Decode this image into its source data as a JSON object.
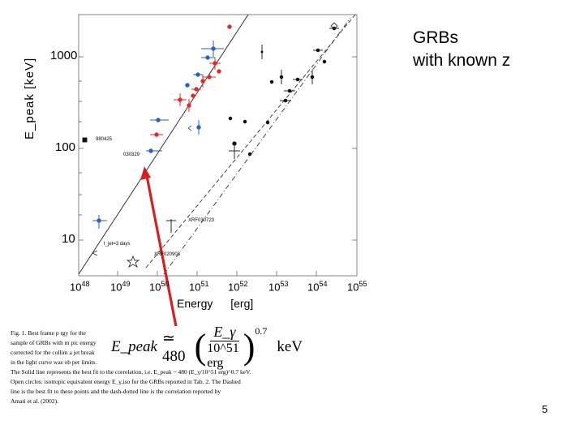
{
  "slide": {
    "title_line1": "GRBs",
    "title_line2": "with known z",
    "page_number": "5"
  },
  "figure": {
    "y_axis_label": "E_peak [keV]",
    "x_axis_label": "Energy [erg]",
    "y_ticks": [
      "1000",
      "100",
      "10"
    ],
    "x_ticks": [
      {
        "base": "10",
        "exp": "48"
      },
      {
        "base": "10",
        "exp": "49"
      },
      {
        "base": "10",
        "exp": "50"
      },
      {
        "base": "10",
        "exp": "51"
      },
      {
        "base": "10",
        "exp": "52"
      },
      {
        "base": "10",
        "exp": "53"
      },
      {
        "base": "10",
        "exp": "54"
      },
      {
        "base": "10",
        "exp": "55"
      }
    ],
    "annotations": {
      "grb_980425": "980425",
      "grb_030329": "030329",
      "xrf_030723": "XRF030723",
      "xrf_020903": "XRF020903",
      "tjet": "t_jet=3 days"
    },
    "colors": {
      "arrow": "#d42020",
      "filled_red": "#e02a2a",
      "open_blue": "#2a5fc8",
      "black": "#111111"
    }
  },
  "formula": {
    "lhs": "E_peak",
    "approx": "≃ 480",
    "numerator": "E_γ",
    "denominator": "10^51 erg",
    "exponent": "0.7",
    "unit": "keV"
  },
  "caption": {
    "line1": "Fig. 1.  Best frame p                                                     rgy for the",
    "line2": "sample of GRBs with m                                                     pic energy",
    "line3": "corrected for the collim                                                    a jet break",
    "line4": "in the light curve was ob                                                   per limits.",
    "line5": "The Solid line represents the best fit to the correlation, i.e. E_peak ~ 480 (E_γ/10^51 erg)^0.7 keV.",
    "line6": "Open circles: isotropic equivalent energy E_γ,iso for the GRBs reported in Tab. 2. The Dashed",
    "line7": "line is the best fit to these points and the dash-dotted line is the correlation reported by",
    "line8": "Amati et al. (2002)."
  }
}
